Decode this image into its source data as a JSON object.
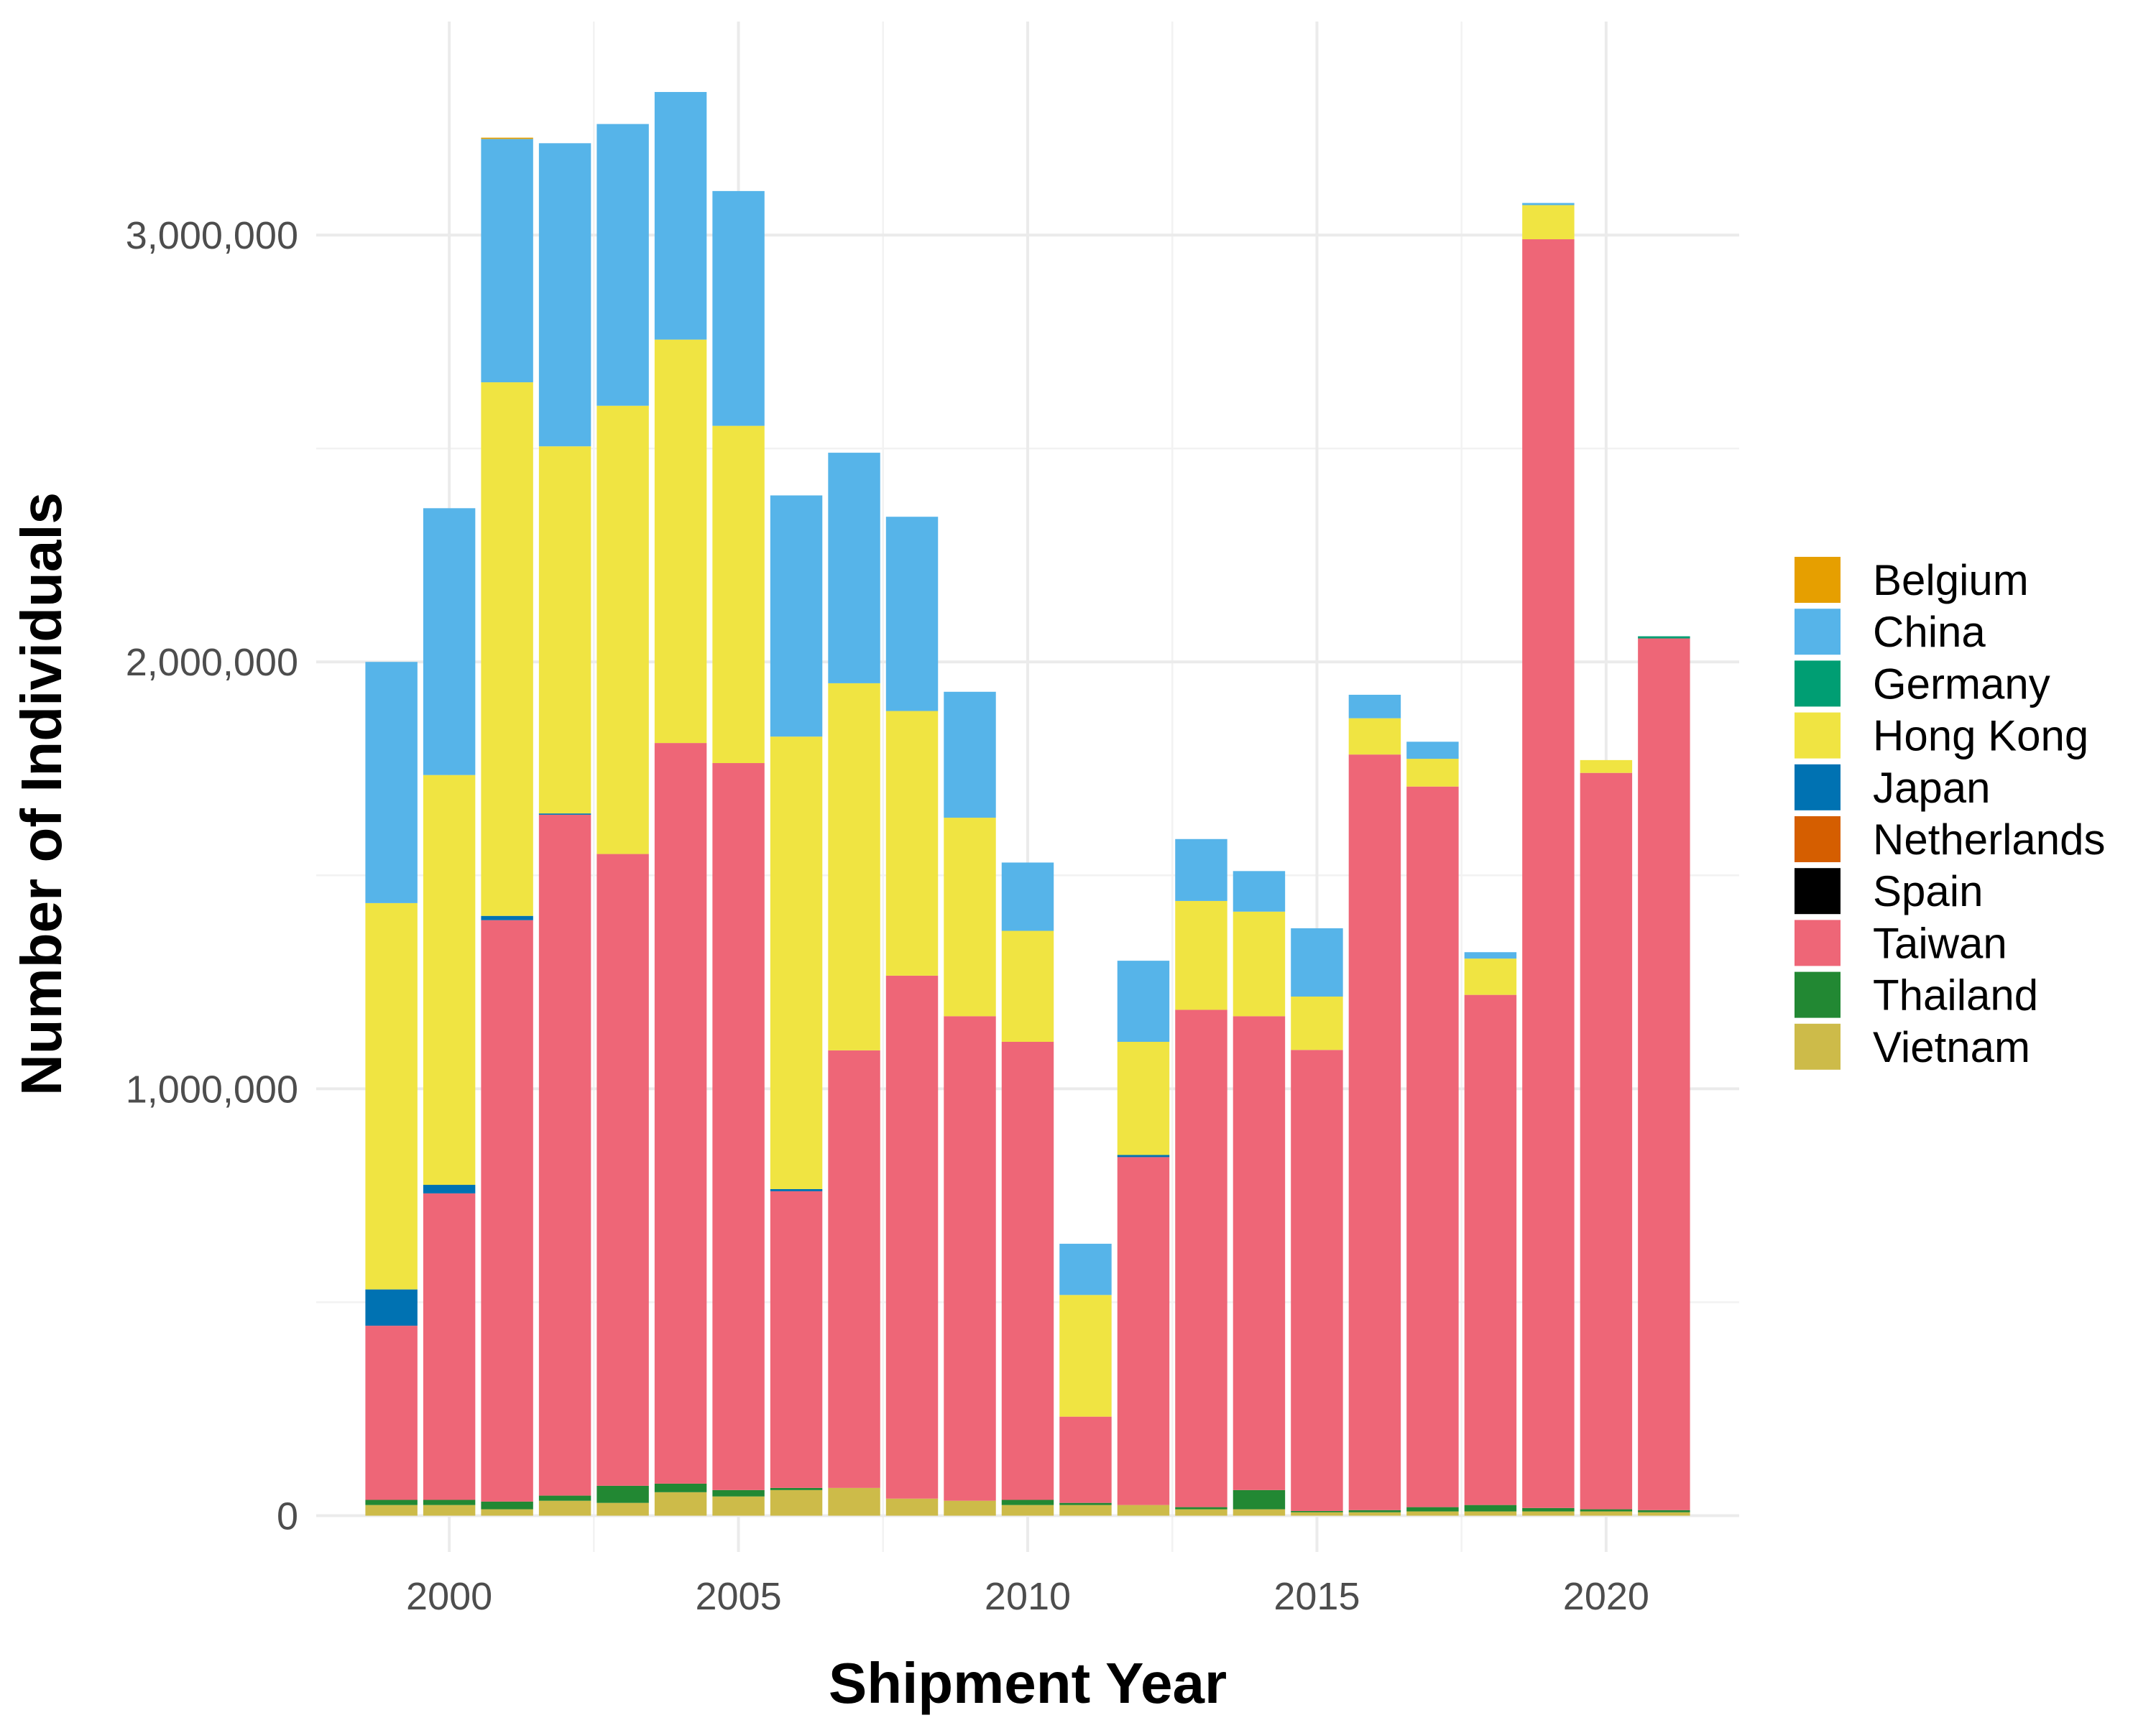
{
  "chart_data": {
    "type": "bar",
    "stacked": true,
    "xlabel": "Shipment Year",
    "ylabel": "Number of Individuals",
    "x_ticks": [
      2000,
      2005,
      2010,
      2015,
      2020
    ],
    "y_ticks": [
      0,
      1000000,
      2000000,
      3000000
    ],
    "y_tick_labels": [
      "0",
      "1,000,000",
      "2,000,000",
      "3,000,000"
    ],
    "xlim": [
      1997.7,
      1022.3
    ],
    "ylim": [
      -85000,
      3500000
    ],
    "grid": true,
    "legend_position": "right",
    "categories": [
      1999,
      2000,
      2001,
      2002,
      2003,
      2004,
      2005,
      2006,
      2007,
      2008,
      2009,
      2010,
      2011,
      2012,
      2013,
      2014,
      2015,
      2016,
      2017,
      2018,
      2019,
      2020,
      2021
    ],
    "series": [
      {
        "name": "Vietnam",
        "color": "#CDBB49",
        "values": [
          25000,
          25000,
          15000,
          35000,
          30000,
          55000,
          45000,
          60000,
          65000,
          40000,
          35000,
          25000,
          25000,
          25000,
          15000,
          15000,
          8000,
          8000,
          10000,
          10000,
          10000,
          10000,
          8000
        ]
      },
      {
        "name": "Thailand",
        "color": "#228833",
        "values": [
          12000,
          12000,
          18000,
          12000,
          40000,
          20000,
          15000,
          5000,
          0,
          0,
          0,
          12000,
          5000,
          0,
          5000,
          45000,
          3000,
          5000,
          10000,
          15000,
          8000,
          5000,
          5000
        ]
      },
      {
        "name": "Taiwan",
        "color": "#EE6677",
        "values": [
          408000,
          718000,
          1362000,
          1595000,
          1480000,
          1735000,
          1703000,
          695000,
          1025000,
          1225000,
          1135000,
          1073000,
          202000,
          815000,
          1165000,
          1110000,
          1080000,
          1770000,
          1688000,
          1195000,
          2972000,
          1725000,
          2042000
        ]
      },
      {
        "name": "Spain",
        "color": "#000000",
        "values": [
          0,
          0,
          0,
          0,
          0,
          0,
          0,
          0,
          0,
          0,
          0,
          0,
          0,
          0,
          0,
          0,
          0,
          0,
          0,
          0,
          0,
          0,
          0
        ]
      },
      {
        "name": "Netherlands",
        "color": "#D55E00",
        "values": [
          0,
          0,
          0,
          0,
          0,
          0,
          0,
          0,
          0,
          0,
          0,
          0,
          0,
          0,
          0,
          0,
          0,
          0,
          0,
          0,
          0,
          0,
          0
        ]
      },
      {
        "name": "Japan",
        "color": "#0072B2",
        "values": [
          85000,
          20000,
          10000,
          3000,
          0,
          0,
          0,
          5000,
          0,
          0,
          0,
          0,
          0,
          5000,
          0,
          0,
          0,
          0,
          0,
          0,
          0,
          0,
          0
        ]
      },
      {
        "name": "Hong Kong",
        "color": "#F0E442",
        "values": [
          905000,
          960000,
          1250000,
          860000,
          1050000,
          945000,
          790000,
          1060000,
          860000,
          620000,
          465000,
          260000,
          285000,
          265000,
          255000,
          245000,
          125000,
          85000,
          65000,
          85000,
          80000,
          30000,
          0
        ]
      },
      {
        "name": "Germany",
        "color": "#009E73",
        "values": [
          0,
          0,
          0,
          0,
          0,
          0,
          0,
          0,
          0,
          0,
          0,
          0,
          0,
          0,
          0,
          0,
          0,
          0,
          0,
          0,
          0,
          0,
          5000
        ]
      },
      {
        "name": "China",
        "color": "#56B4E9",
        "values": [
          565000,
          625000,
          570000,
          710000,
          660000,
          580000,
          550000,
          565000,
          540000,
          455000,
          295000,
          160000,
          120000,
          190000,
          145000,
          95000,
          160000,
          55000,
          40000,
          15000,
          5000,
          0,
          0
        ]
      },
      {
        "name": "Belgium",
        "color": "#E69F00",
        "values": [
          0,
          0,
          3000,
          0,
          0,
          0,
          0,
          0,
          0,
          0,
          0,
          0,
          0,
          0,
          0,
          0,
          0,
          0,
          0,
          0,
          0,
          0,
          0
        ]
      }
    ],
    "legend": [
      "Belgium",
      "China",
      "Germany",
      "Hong Kong",
      "Japan",
      "Netherlands",
      "Spain",
      "Taiwan",
      "Thailand",
      "Vietnam"
    ]
  }
}
